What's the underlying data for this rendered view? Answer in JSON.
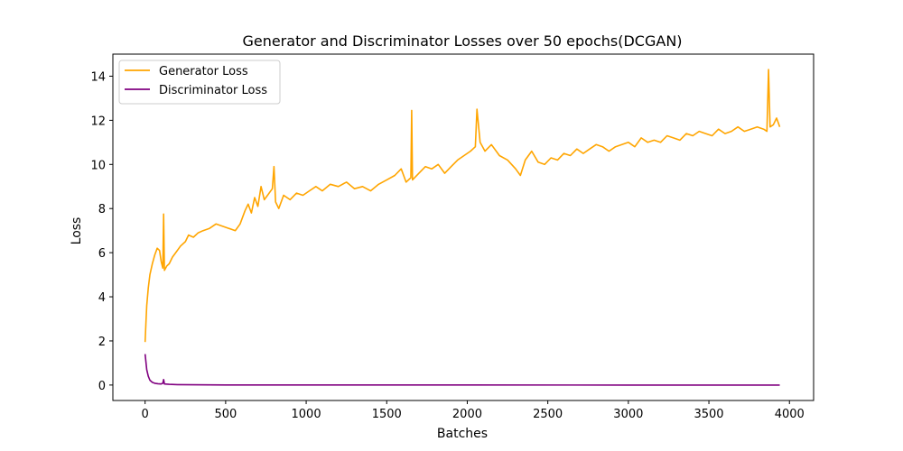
{
  "chart_data": {
    "type": "line",
    "title": "Generator and Discriminator Losses over 50 epochs(DCGAN)",
    "xlabel": "Batches",
    "ylabel": "Loss",
    "xlim": [
      -200,
      4150
    ],
    "ylim": [
      -0.7,
      15.0
    ],
    "xticks": [
      0,
      500,
      1000,
      1500,
      2000,
      2500,
      3000,
      3500,
      4000
    ],
    "yticks": [
      0,
      2,
      4,
      6,
      8,
      10,
      12,
      14
    ],
    "grid": false,
    "legend": "top-left",
    "series": [
      {
        "name": "Generator Loss",
        "color": "#ffa500",
        "points": [
          [
            0,
            1.95
          ],
          [
            5,
            2.8
          ],
          [
            10,
            3.6
          ],
          [
            20,
            4.4
          ],
          [
            30,
            5.0
          ],
          [
            45,
            5.5
          ],
          [
            60,
            5.9
          ],
          [
            75,
            6.2
          ],
          [
            90,
            6.1
          ],
          [
            100,
            5.6
          ],
          [
            110,
            5.3
          ],
          [
            115,
            7.75
          ],
          [
            120,
            5.2
          ],
          [
            135,
            5.4
          ],
          [
            150,
            5.5
          ],
          [
            170,
            5.8
          ],
          [
            190,
            6.0
          ],
          [
            220,
            6.3
          ],
          [
            250,
            6.5
          ],
          [
            270,
            6.8
          ],
          [
            300,
            6.7
          ],
          [
            330,
            6.9
          ],
          [
            360,
            7.0
          ],
          [
            400,
            7.1
          ],
          [
            440,
            7.3
          ],
          [
            480,
            7.2
          ],
          [
            520,
            7.1
          ],
          [
            560,
            7.0
          ],
          [
            590,
            7.3
          ],
          [
            620,
            7.9
          ],
          [
            640,
            8.2
          ],
          [
            660,
            7.8
          ],
          [
            680,
            8.5
          ],
          [
            700,
            8.1
          ],
          [
            720,
            9.0
          ],
          [
            740,
            8.4
          ],
          [
            760,
            8.6
          ],
          [
            790,
            8.9
          ],
          [
            800,
            9.9
          ],
          [
            810,
            8.3
          ],
          [
            830,
            8.0
          ],
          [
            860,
            8.6
          ],
          [
            900,
            8.4
          ],
          [
            940,
            8.7
          ],
          [
            980,
            8.6
          ],
          [
            1020,
            8.8
          ],
          [
            1060,
            9.0
          ],
          [
            1100,
            8.8
          ],
          [
            1150,
            9.1
          ],
          [
            1200,
            9.0
          ],
          [
            1250,
            9.2
          ],
          [
            1300,
            8.9
          ],
          [
            1350,
            9.0
          ],
          [
            1400,
            8.8
          ],
          [
            1450,
            9.1
          ],
          [
            1500,
            9.3
          ],
          [
            1550,
            9.5
          ],
          [
            1590,
            9.8
          ],
          [
            1620,
            9.2
          ],
          [
            1650,
            9.4
          ],
          [
            1655,
            12.45
          ],
          [
            1660,
            9.3
          ],
          [
            1700,
            9.6
          ],
          [
            1740,
            9.9
          ],
          [
            1780,
            9.8
          ],
          [
            1820,
            10.0
          ],
          [
            1860,
            9.6
          ],
          [
            1900,
            9.9
          ],
          [
            1940,
            10.2
          ],
          [
            1980,
            10.4
          ],
          [
            2020,
            10.6
          ],
          [
            2050,
            10.8
          ],
          [
            2060,
            12.5
          ],
          [
            2080,
            11.0
          ],
          [
            2110,
            10.6
          ],
          [
            2150,
            10.9
          ],
          [
            2200,
            10.4
          ],
          [
            2250,
            10.2
          ],
          [
            2300,
            9.8
          ],
          [
            2330,
            9.5
          ],
          [
            2360,
            10.2
          ],
          [
            2400,
            10.6
          ],
          [
            2440,
            10.1
          ],
          [
            2480,
            10.0
          ],
          [
            2520,
            10.3
          ],
          [
            2560,
            10.2
          ],
          [
            2600,
            10.5
          ],
          [
            2640,
            10.4
          ],
          [
            2680,
            10.7
          ],
          [
            2720,
            10.5
          ],
          [
            2760,
            10.7
          ],
          [
            2800,
            10.9
          ],
          [
            2840,
            10.8
          ],
          [
            2880,
            10.6
          ],
          [
            2920,
            10.8
          ],
          [
            2960,
            10.9
          ],
          [
            3000,
            11.0
          ],
          [
            3040,
            10.8
          ],
          [
            3080,
            11.2
          ],
          [
            3120,
            11.0
          ],
          [
            3160,
            11.1
          ],
          [
            3200,
            11.0
          ],
          [
            3240,
            11.3
          ],
          [
            3280,
            11.2
          ],
          [
            3320,
            11.1
          ],
          [
            3360,
            11.4
          ],
          [
            3400,
            11.3
          ],
          [
            3440,
            11.5
          ],
          [
            3480,
            11.4
          ],
          [
            3520,
            11.3
          ],
          [
            3560,
            11.6
          ],
          [
            3600,
            11.4
          ],
          [
            3640,
            11.5
          ],
          [
            3680,
            11.7
          ],
          [
            3720,
            11.5
          ],
          [
            3760,
            11.6
          ],
          [
            3800,
            11.7
          ],
          [
            3840,
            11.6
          ],
          [
            3860,
            11.5
          ],
          [
            3870,
            14.3
          ],
          [
            3880,
            11.7
          ],
          [
            3900,
            11.8
          ],
          [
            3920,
            12.1
          ],
          [
            3940,
            11.7
          ]
        ]
      },
      {
        "name": "Discriminator Loss",
        "color": "#800080",
        "points": [
          [
            0,
            1.4
          ],
          [
            5,
            1.05
          ],
          [
            10,
            0.7
          ],
          [
            20,
            0.4
          ],
          [
            30,
            0.22
          ],
          [
            45,
            0.12
          ],
          [
            60,
            0.08
          ],
          [
            80,
            0.06
          ],
          [
            100,
            0.05
          ],
          [
            110,
            0.08
          ],
          [
            115,
            0.25
          ],
          [
            120,
            0.05
          ],
          [
            150,
            0.03
          ],
          [
            200,
            0.02
          ],
          [
            300,
            0.01
          ],
          [
            500,
            0.005
          ],
          [
            1000,
            0.003
          ],
          [
            2000,
            0.002
          ],
          [
            3000,
            0.001
          ],
          [
            3940,
            0.001
          ]
        ]
      }
    ]
  }
}
